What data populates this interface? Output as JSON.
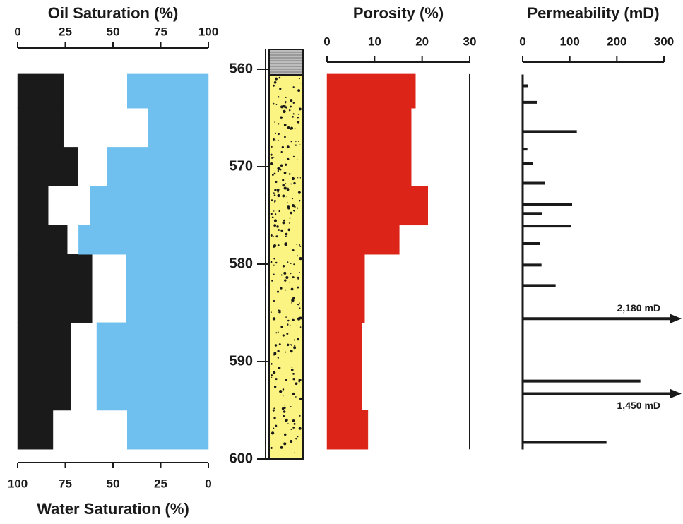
{
  "chart_data": [
    {
      "type": "step",
      "title": "Oil Saturation (%)",
      "xlabel": "Water Saturation (%)",
      "depths": [
        560.5,
        564,
        568,
        572,
        576,
        579,
        586,
        595,
        599
      ],
      "series": [
        {
          "color": "#1a1a1a",
          "values": [
            24,
            24,
            31.5,
            16,
            26,
            39,
            28,
            18.5
          ]
        },
        {
          "color": "#6fc0ee",
          "axis": "x2",
          "values": [
            42.5,
            31.5,
            53,
            62,
            68,
            43,
            58.5,
            42.5
          ]
        }
      ],
      "xlim": [
        0,
        100
      ],
      "xticks": [
        0,
        25,
        50,
        75,
        100
      ],
      "x2lim": [
        100,
        0
      ],
      "x2ticks": [
        100,
        75,
        50,
        25,
        0
      ],
      "ylim": [
        560,
        600
      ],
      "yticks": [
        560,
        570,
        580,
        590,
        600
      ]
    },
    {
      "type": "step",
      "title": "Porosity (%)",
      "depths": [
        560.5,
        564,
        572,
        576,
        579,
        586,
        595,
        599
      ],
      "series": [
        {
          "color": "#dc2418",
          "values": [
            18.6,
            17.7,
            21.2,
            15.2,
            7.9,
            7.3,
            8.6
          ]
        }
      ],
      "xlim": [
        0,
        30
      ],
      "xticks": [
        0,
        10,
        20,
        30
      ],
      "ylim": [
        560,
        600
      ]
    },
    {
      "type": "bar",
      "title": "Permeability (mD)",
      "color": "#1a1a1a",
      "y": [
        561.7,
        563.4,
        566.4,
        568.2,
        569.7,
        571.7,
        573.9,
        574.8,
        576.1,
        577.9,
        580.1,
        582.2,
        585.6,
        592,
        593.3,
        598.3
      ],
      "values": [
        12,
        30,
        115,
        10,
        22,
        48,
        105,
        42,
        103,
        37,
        40,
        70,
        2180,
        250,
        1450,
        178
      ],
      "value_labels": [
        null,
        null,
        null,
        null,
        null,
        null,
        null,
        null,
        null,
        null,
        null,
        null,
        "2,180 mD",
        null,
        "1,450 mD",
        null
      ],
      "xlim": [
        0,
        300
      ],
      "xticks": [
        0,
        100,
        200,
        300
      ],
      "ylim": [
        560,
        600
      ]
    }
  ]
}
